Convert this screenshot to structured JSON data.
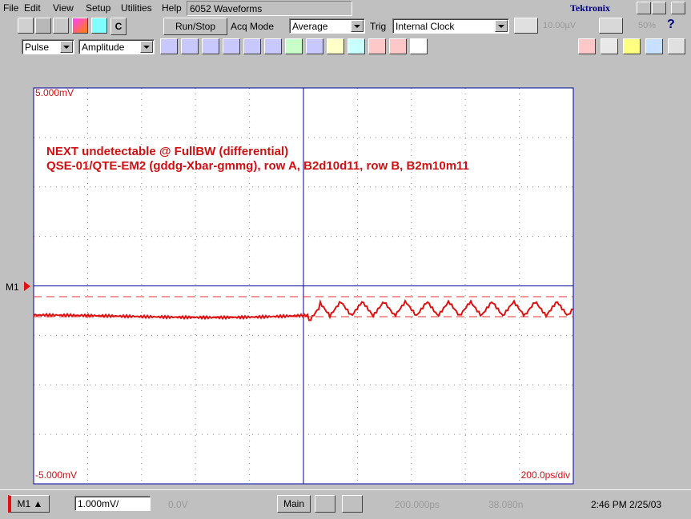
{
  "menu": [
    "File",
    "Edit",
    "View",
    "Setup",
    "Utilities",
    "Help"
  ],
  "window_title": "6052 Waveforms",
  "brand": "Tektronix",
  "toolbar": {
    "run_stop": "Run/Stop",
    "acq_mode_label": "Acq Mode",
    "acq_mode": "Average",
    "trig_label": "Trig",
    "trig_source": "Internal Clock",
    "trig_level": "10.00µV",
    "percent": "50%",
    "c_button": "C"
  },
  "measure_bar": {
    "measurement_class": "Pulse",
    "measurement": "Amplitude"
  },
  "display": {
    "top_label": "5.000mV",
    "bottom_label": "-5.000mV",
    "timebase_label": "200.0ps/div",
    "marker": "M1",
    "annotations": [
      "NEXT undetectable @ FullBW (differential)",
      "QSE-01/QTE-EM2 (gddg-Xbar-gmmg), row A, B2d10d11, row B, B2m10m11"
    ]
  },
  "status_bar": {
    "source": "M1",
    "scale": "1.000mV/",
    "offset": "0.0V",
    "timebase_mode": "Main",
    "position": "200.000ps",
    "record": "38.080n",
    "clock": "2:46 PM 2/25/03"
  }
}
